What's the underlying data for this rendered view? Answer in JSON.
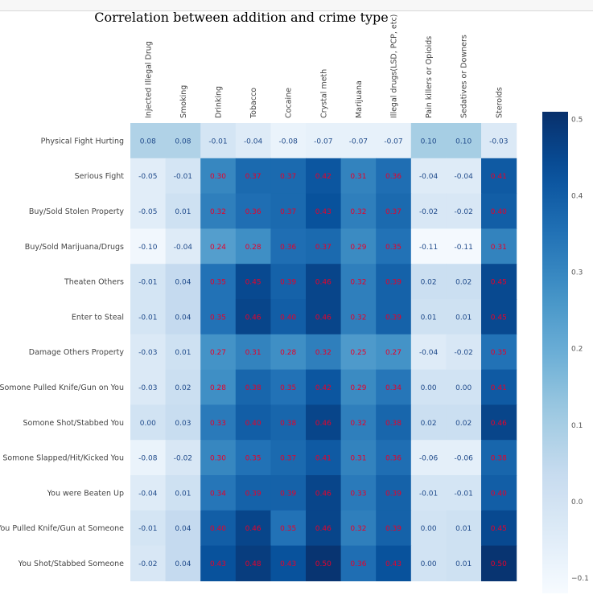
{
  "title": "Correlation between addition and crime type",
  "chart_data": {
    "type": "heatmap",
    "title": "Correlation between addition and crime type",
    "columns": [
      "Injected Illegal Drug",
      "Smoking",
      "Drinking",
      "Tobacco",
      "Cocaine",
      "Crystal meth",
      "Marijuana",
      "Illegal drugs(LSD, PCP, etc)",
      "Pain killers or Opioids",
      "Sedatives or Downers",
      "Steroids"
    ],
    "rows": [
      "Physical Fight Hurting",
      "Serious Fight",
      "Buy/Sold Stolen Property",
      "Buy/Sold Marijuana/Drugs",
      "Theaten Others",
      "Enter to Steal",
      "Damage Others Property",
      "Somone Pulled Knife/Gun on You",
      "Somone Shot/Stabbed You",
      "Somone Slapped/Hit/Kicked You",
      "You were Beaten Up",
      "You Pulled Knife/Gun at Someone",
      "You Shot/Stabbed Someone"
    ],
    "values": [
      [
        0.08,
        0.08,
        -0.01,
        -0.04,
        -0.08,
        -0.07,
        -0.07,
        -0.07,
        0.1,
        0.1,
        -0.03
      ],
      [
        -0.05,
        -0.01,
        0.3,
        0.37,
        0.37,
        0.42,
        0.31,
        0.36,
        -0.04,
        -0.04,
        0.41
      ],
      [
        -0.05,
        0.01,
        0.32,
        0.36,
        0.37,
        0.43,
        0.32,
        0.37,
        -0.02,
        -0.02,
        0.4
      ],
      [
        -0.1,
        -0.04,
        0.24,
        0.28,
        0.36,
        0.37,
        0.29,
        0.35,
        -0.11,
        -0.11,
        0.31
      ],
      [
        -0.01,
        0.04,
        0.35,
        0.45,
        0.39,
        0.46,
        0.32,
        0.39,
        0.02,
        0.02,
        0.45
      ],
      [
        -0.01,
        0.04,
        0.35,
        0.46,
        0.4,
        0.46,
        0.32,
        0.39,
        0.01,
        0.01,
        0.45
      ],
      [
        -0.03,
        0.01,
        0.27,
        0.31,
        0.28,
        0.32,
        0.25,
        0.27,
        -0.04,
        -0.02,
        0.35
      ],
      [
        -0.03,
        0.02,
        0.28,
        0.38,
        0.35,
        0.42,
        0.29,
        0.34,
        -0.0,
        0.0,
        0.41
      ],
      [
        0.0,
        0.03,
        0.33,
        0.4,
        0.38,
        0.46,
        0.32,
        0.38,
        0.02,
        0.02,
        0.46
      ],
      [
        -0.08,
        -0.02,
        0.3,
        0.35,
        0.37,
        0.41,
        0.31,
        0.36,
        -0.06,
        -0.06,
        0.38
      ],
      [
        -0.04,
        0.01,
        0.34,
        0.39,
        0.39,
        0.46,
        0.33,
        0.39,
        -0.01,
        -0.01,
        0.4
      ],
      [
        -0.01,
        0.04,
        0.4,
        0.46,
        0.35,
        0.46,
        0.32,
        0.39,
        -0.0,
        0.01,
        0.45
      ],
      [
        -0.02,
        0.04,
        0.43,
        0.48,
        0.43,
        0.5,
        0.36,
        0.43,
        0.0,
        0.01,
        0.5
      ]
    ],
    "vmin": -0.12,
    "vmax": 0.51,
    "colormap": "Blues",
    "annotation_color": "#e8002a",
    "colorbar_ticks": [
      "0.5",
      "0.4",
      "0.3",
      "0.2",
      "0.1",
      "0.0",
      "−0.1"
    ],
    "colorbar_tick_values": [
      0.5,
      0.4,
      0.3,
      0.2,
      0.1,
      0.0,
      -0.1
    ],
    "xlabel": "",
    "ylabel": ""
  }
}
